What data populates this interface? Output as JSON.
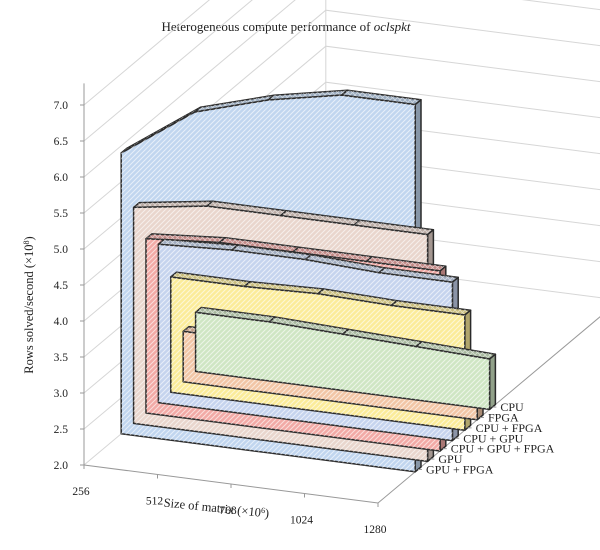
{
  "chart_data": {
    "type": "area",
    "title_main": "Heterogeneous compute performance of ",
    "title_italic": "oclspkt",
    "ylabel_main": "Rows solved/second (×10",
    "ylabel_exp": "8",
    "ylabel_close": ")",
    "xlabel_main": "Size of matrix (×10",
    "xlabel_exp": "6",
    "xlabel_close": ")",
    "categories": [
      "256",
      "512",
      "768",
      "1024",
      "1280"
    ],
    "y_ticks": [
      "2.0",
      "2.5",
      "3.0",
      "3.5",
      "4.0",
      "4.5",
      "5.0",
      "5.5",
      "6.0",
      "6.5",
      "7.0"
    ],
    "ylim": [
      2.0,
      7.0
    ],
    "series": [
      {
        "name": "CPU",
        "values": [
          2.82,
          2.82,
          2.78,
          2.74,
          2.7
        ],
        "color": "#cfe6c4"
      },
      {
        "name": "FPGA",
        "values": [
          2.7,
          2.7,
          2.7,
          2.7,
          2.7
        ],
        "color": "#f2c6a6"
      },
      {
        "name": "CPU + FPGA",
        "values": [
          3.6,
          3.6,
          3.63,
          3.6,
          3.6
        ],
        "color": "#fbec9a"
      },
      {
        "name": "CPU + GPU",
        "values": [
          4.2,
          4.25,
          4.25,
          4.2,
          4.2
        ],
        "color": "#c6d4ee"
      },
      {
        "name": "CPU + GPU + FPGA",
        "values": [
          4.42,
          4.5,
          4.5,
          4.5,
          4.5
        ],
        "color": "#f2aaa6"
      },
      {
        "name": "GPU",
        "values": [
          5.0,
          5.15,
          5.15,
          5.15,
          5.15
        ],
        "color": "#e9d6cd"
      },
      {
        "name": "GPU + FPGA",
        "values": [
          5.9,
          6.6,
          6.9,
          7.1,
          7.1
        ],
        "color": "#c1d6ef"
      }
    ]
  }
}
